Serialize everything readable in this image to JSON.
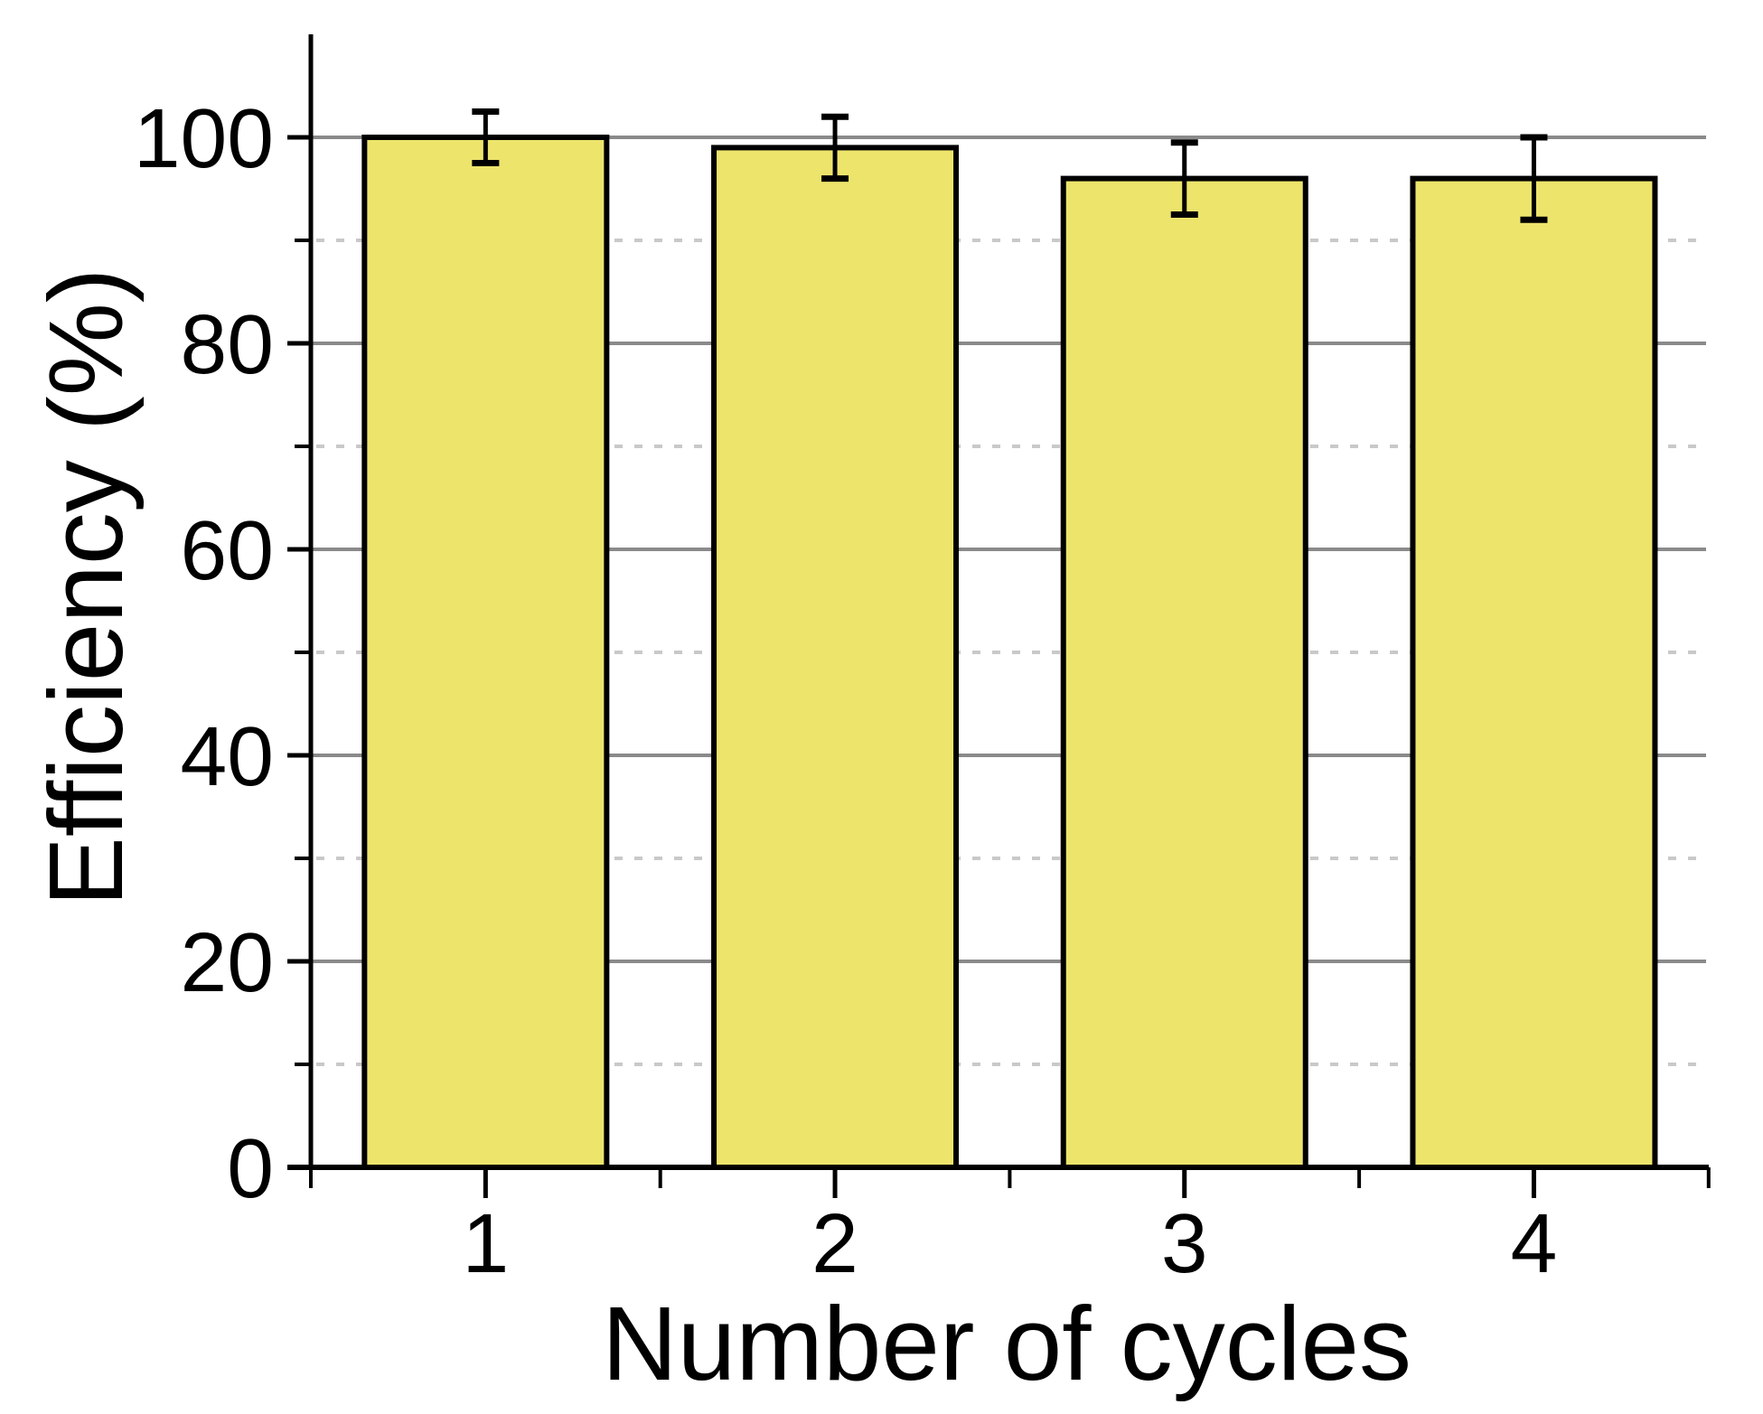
{
  "figure": {
    "background": "#ffffff"
  },
  "chart_data": {
    "type": "bar",
    "title": "",
    "xlabel": "Number of cycles",
    "ylabel": "Efficiency (%)",
    "categories": [
      "1",
      "2",
      "3",
      "4"
    ],
    "values": [
      100,
      99,
      96,
      96
    ],
    "error_bars": [
      2.5,
      3,
      3.5,
      4
    ],
    "ylim": [
      0,
      110
    ],
    "xlim": [
      0.5,
      4.5
    ],
    "yticks_major": [
      0,
      20,
      40,
      60,
      80,
      100
    ],
    "yticks_minor": [
      10,
      30,
      50,
      70,
      90
    ],
    "xticks_minor": [
      0.5,
      1.5,
      2.5,
      3.5,
      4.5
    ],
    "grid": {
      "major": "solid",
      "minor": "dotted",
      "vertical": "none"
    },
    "legend_position": "none",
    "colors": {
      "bar_fill": "#EDE46C",
      "bar_stroke": "#000000",
      "error_bar": "#000000",
      "axis": "#000000",
      "major_grid": "#8A8A8A",
      "minor_grid": "#C9C9C9",
      "text": "#000000"
    }
  }
}
